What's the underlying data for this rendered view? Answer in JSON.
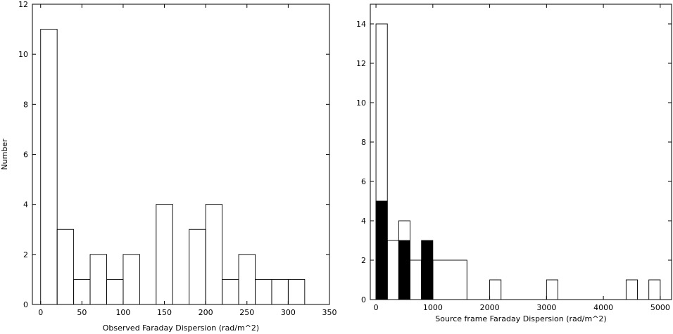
{
  "chart_data": [
    {
      "type": "bar",
      "histogram": true,
      "title": "",
      "xlabel": "Observed Faraday Dispersion (rad/m^2)",
      "ylabel": "Number",
      "xlim": [
        -10,
        350
      ],
      "ylim": [
        0,
        12
      ],
      "xticks": [
        0,
        50,
        100,
        150,
        200,
        250,
        300,
        350
      ],
      "yticks": [
        0,
        2,
        4,
        6,
        8,
        10,
        12
      ],
      "grid": false,
      "series": [
        {
          "bins": [
            {
              "x0": 0,
              "x1": 20,
              "value": 11
            },
            {
              "x0": 20,
              "x1": 40,
              "value": 3
            },
            {
              "x0": 40,
              "x1": 60,
              "value": 1
            },
            {
              "x0": 60,
              "x1": 80,
              "value": 2
            },
            {
              "x0": 80,
              "x1": 100,
              "value": 1
            },
            {
              "x0": 100,
              "x1": 120,
              "value": 2
            },
            {
              "x0": 120,
              "x1": 140,
              "value": 0
            },
            {
              "x0": 140,
              "x1": 160,
              "value": 4
            },
            {
              "x0": 160,
              "x1": 180,
              "value": 0
            },
            {
              "x0": 180,
              "x1": 200,
              "value": 3
            },
            {
              "x0": 200,
              "x1": 220,
              "value": 4
            },
            {
              "x0": 220,
              "x1": 240,
              "value": 1
            },
            {
              "x0": 240,
              "x1": 260,
              "value": 2
            },
            {
              "x0": 260,
              "x1": 280,
              "value": 1
            },
            {
              "x0": 280,
              "x1": 300,
              "value": 1
            },
            {
              "x0": 300,
              "x1": 320,
              "value": 1
            }
          ],
          "fill": "none",
          "stroke": "#000000"
        }
      ]
    },
    {
      "type": "bar",
      "histogram": true,
      "title": "",
      "xlabel": "Source frame Faraday Dispersion (rad/m^2)",
      "ylabel": "",
      "xlim": [
        -100,
        5200
      ],
      "ylim": [
        0,
        15
      ],
      "xticks": [
        0,
        1000,
        2000,
        3000,
        4000,
        5000
      ],
      "yticks": [
        0,
        2,
        4,
        6,
        8,
        10,
        12,
        14
      ],
      "grid": false,
      "series": [
        {
          "bins": [
            {
              "x0": 0,
              "x1": 200,
              "value": 14
            },
            {
              "x0": 200,
              "x1": 400,
              "value": 3
            },
            {
              "x0": 400,
              "x1": 600,
              "value": 4
            },
            {
              "x0": 600,
              "x1": 800,
              "value": 2
            },
            {
              "x0": 800,
              "x1": 1000,
              "value": 2
            },
            {
              "x0": 1000,
              "x1": 1600,
              "value": 2
            },
            {
              "x0": 2000,
              "x1": 2200,
              "value": 1
            },
            {
              "x0": 3000,
              "x1": 3200,
              "value": 1
            },
            {
              "x0": 4400,
              "x1": 4600,
              "value": 1
            },
            {
              "x0": 4800,
              "x1": 5000,
              "value": 1
            }
          ],
          "fill": "none",
          "stroke": "#000000"
        },
        {
          "bins": [
            {
              "x0": 0,
              "x1": 200,
              "value": 5
            },
            {
              "x0": 400,
              "x1": 600,
              "value": 3
            },
            {
              "x0": 800,
              "x1": 1000,
              "value": 3
            }
          ],
          "fill": "#000000",
          "stroke": "#000000"
        }
      ]
    }
  ]
}
